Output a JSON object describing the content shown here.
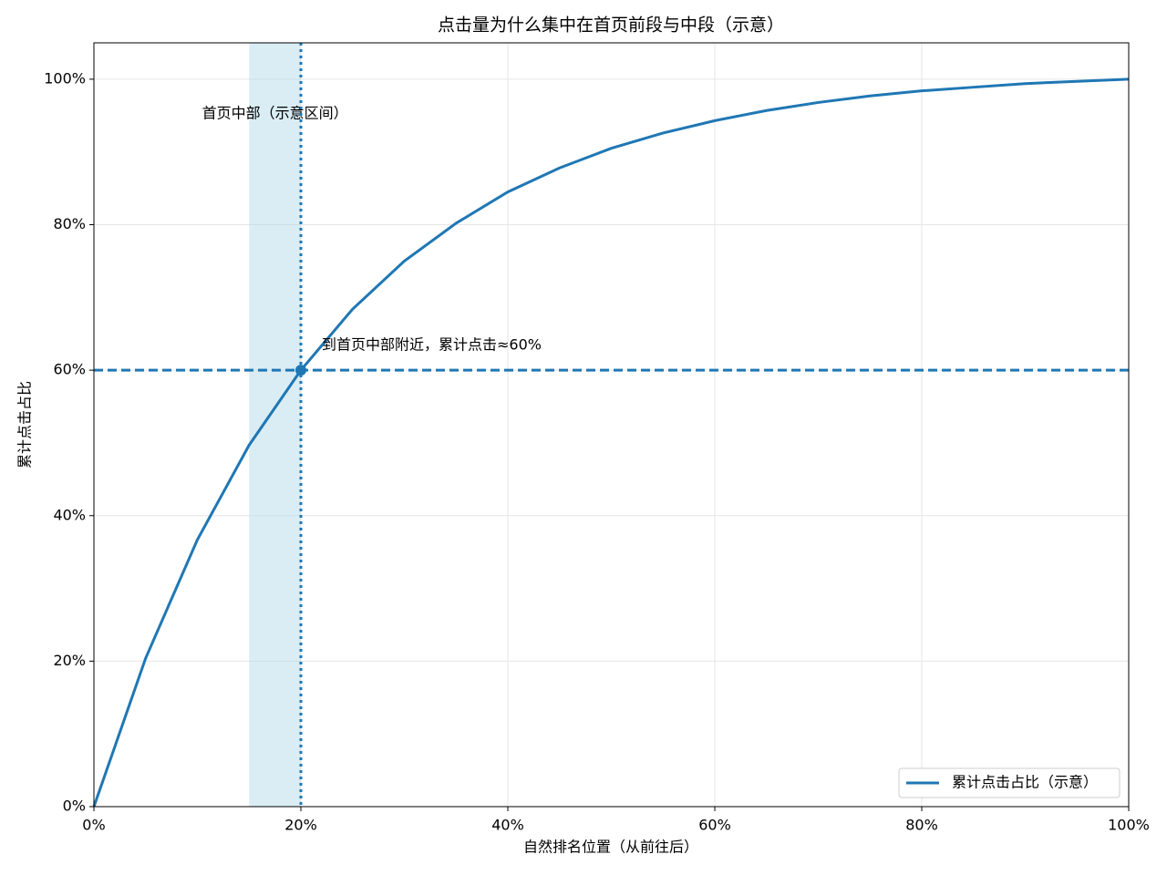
{
  "chart_data": {
    "type": "line",
    "title": "点击量为什么集中在首页前段与中段（示意）",
    "x_label": "自然排名位置（从前往后）",
    "y_label": "累计点击占比",
    "x": [
      0,
      5,
      10,
      15,
      20,
      25,
      30,
      35,
      40,
      45,
      50,
      55,
      60,
      65,
      70,
      75,
      80,
      85,
      90,
      95,
      100
    ],
    "series": [
      {
        "name": "累计点击占比（示意）",
        "color": "#1f77b4",
        "values": [
          0,
          20.4,
          36.7,
          49.7,
          60,
          68.4,
          75.0,
          80.2,
          84.5,
          87.8,
          90.5,
          92.6,
          94.3,
          95.7,
          96.8,
          97.7,
          98.4,
          98.9,
          99.4,
          99.7,
          100
        ]
      }
    ],
    "xlim": [
      0,
      100
    ],
    "ylim": [
      0,
      105
    ],
    "xticks": [
      {
        "value": 0,
        "label": "0%"
      },
      {
        "value": 20,
        "label": "20%"
      },
      {
        "value": 40,
        "label": "40%"
      },
      {
        "value": 60,
        "label": "60%"
      },
      {
        "value": 80,
        "label": "80%"
      },
      {
        "value": 100,
        "label": "100%"
      }
    ],
    "yticks": [
      {
        "value": 0,
        "label": "0%"
      },
      {
        "value": 20,
        "label": "20%"
      },
      {
        "value": 40,
        "label": "40%"
      },
      {
        "value": 60,
        "label": "60%"
      },
      {
        "value": 80,
        "label": "80%"
      },
      {
        "value": 100,
        "label": "100%"
      }
    ],
    "grid": true,
    "legend": "lower right",
    "span": {
      "x": [
        15,
        20
      ],
      "color": "#add8e6",
      "label": "首页中部（示意区间）"
    },
    "vline": 20,
    "hline": 60,
    "point": {
      "x": 20,
      "y": 60,
      "label": "到首页中部附近，累计点击≈60%"
    }
  }
}
